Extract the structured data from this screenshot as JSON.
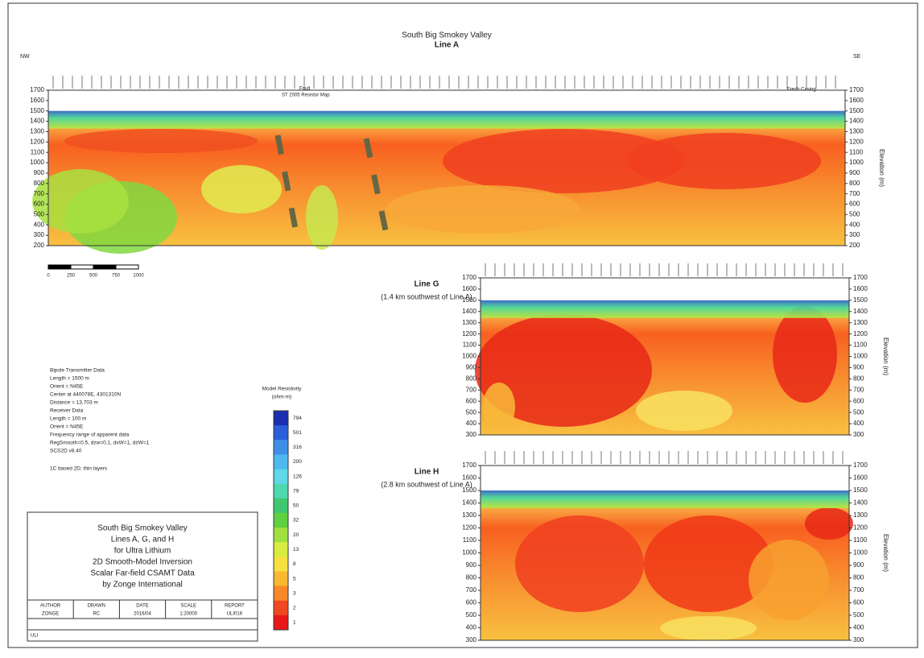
{
  "title": "South Big Smokey Valley",
  "sections": [
    {
      "label": "Line A",
      "subtitle": null,
      "left_end": "NW",
      "right_end": "SE",
      "yticks": [
        1700,
        1600,
        1500,
        1400,
        1300,
        1200,
        1100,
        1000,
        900,
        800,
        700,
        600,
        500,
        400,
        300,
        200
      ],
      "ylim": [
        200,
        1700
      ],
      "axis_label": "Elevation (m)",
      "annotations": [
        "Fault",
        "ST 2005 Resistor Map",
        "Fresh Casing"
      ]
    },
    {
      "label": "Line G",
      "subtitle": "(1.4 km southwest of Line A)",
      "yticks": [
        1700,
        1600,
        1500,
        1400,
        1300,
        1200,
        1100,
        1000,
        900,
        800,
        700,
        600,
        500,
        400,
        300
      ],
      "ylim": [
        300,
        1700
      ],
      "axis_label": "Elevation (m)"
    },
    {
      "label": "Line H",
      "subtitle": "(2.8 km southwest of Line A)",
      "yticks": [
        1700,
        1600,
        1500,
        1400,
        1300,
        1200,
        1100,
        1000,
        900,
        800,
        700,
        600,
        500,
        400,
        300
      ],
      "ylim": [
        300,
        1700
      ],
      "axis_label": "Elevation (m)"
    }
  ],
  "scale_bar": [
    "0",
    "250",
    "500",
    "750",
    "1000"
  ],
  "notes": [
    "Bipole Transmitter Data",
    "Length = 1500 m",
    "Orient = N45E",
    "Center at 440078E, 4301310N",
    "Distance = 13,703 m",
    "Receiver Data",
    "Length = 100 m",
    "Orient = N45E",
    "Frequency range of apparent data",
    "RegSmooth=0.5, dzw=0.1, dxW=1, dzW=1",
    "SCS2D v8.40",
    "1C based 2D; thin layers"
  ],
  "colorbar": {
    "title": "Model Resistivity",
    "units": "(ohm-m)",
    "labels": [
      "794",
      "501",
      "316",
      "200",
      "126",
      "79",
      "50",
      "32",
      "20",
      "13",
      "8",
      "5",
      "3",
      "2",
      "1"
    ],
    "colors": [
      "#1a2fb0",
      "#2a5fd8",
      "#3f8fe8",
      "#4fb8f0",
      "#5fd8e8",
      "#4fd8b0",
      "#3fc870",
      "#5fd040",
      "#9fe040",
      "#d8ec40",
      "#f8e040",
      "#f8b830",
      "#f88828",
      "#f04820",
      "#e81818"
    ]
  },
  "title_block": {
    "lines": [
      "South Big Smokey Valley",
      "Lines A, G, and H",
      "for Ultra Lithium",
      "2D Smooth-Model Inversion",
      "Scalar Far-field CSAMT Data",
      "by Zonge International"
    ],
    "table": {
      "headers": [
        "AUTHOR",
        "DRAWN",
        "DATE",
        "SCALE",
        "REPORT"
      ],
      "values": [
        "ZONGE",
        "RC",
        "2016/04",
        "1:20000",
        "ULI016"
      ]
    },
    "footer": "ULI"
  }
}
